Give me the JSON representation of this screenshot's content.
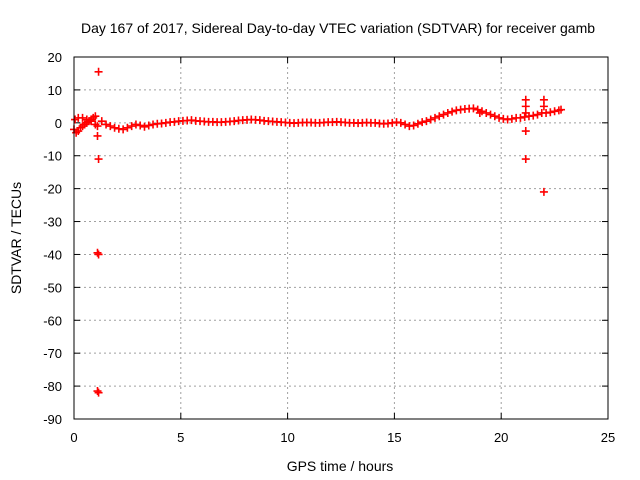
{
  "chart_data": {
    "type": "scatter",
    "title": "Day 167 of 2017, Sidereal Day-to-day VTEC variation (SDTVAR) for receiver gamb",
    "xlabel": "GPS time / hours",
    "ylabel": "SDTVAR / TECUs",
    "xlim": [
      0,
      25
    ],
    "ylim": [
      -90,
      20
    ],
    "xticks": [
      0,
      5,
      10,
      15,
      20,
      25
    ],
    "yticks": [
      20,
      10,
      0,
      -10,
      -20,
      -30,
      -40,
      -50,
      -60,
      -70,
      -80,
      -90
    ],
    "xtick_labels": [
      "0",
      "5",
      "10",
      "15",
      "20",
      "25"
    ],
    "ytick_labels": [
      "20",
      "10",
      "0",
      "-10",
      "-20",
      "-30",
      "-40",
      "-50",
      "-60",
      "-70",
      "-80",
      "-90"
    ],
    "grid": true,
    "marker": "+",
    "color": "#ff0000",
    "series": [
      {
        "name": "SDTVAR",
        "points": [
          [
            0.0,
            -2.0
          ],
          [
            0.1,
            -3.0
          ],
          [
            0.2,
            -2.5
          ],
          [
            0.3,
            -1.5
          ],
          [
            0.4,
            -1.0
          ],
          [
            0.5,
            -0.5
          ],
          [
            0.6,
            0.0
          ],
          [
            0.7,
            0.5
          ],
          [
            0.8,
            1.0
          ],
          [
            0.9,
            1.5
          ],
          [
            1.0,
            2.0
          ],
          [
            0.05,
            1.0
          ],
          [
            0.2,
            1.5
          ],
          [
            0.4,
            1.5
          ],
          [
            0.6,
            1.0
          ],
          [
            0.8,
            0.5
          ],
          [
            1.0,
            -0.5
          ],
          [
            1.1,
            -1.0
          ],
          [
            1.15,
            15.5
          ],
          [
            1.1,
            -4.0
          ],
          [
            1.15,
            -11.0
          ],
          [
            1.1,
            -39.5
          ],
          [
            1.15,
            -40.0
          ],
          [
            1.1,
            -81.5
          ],
          [
            1.15,
            -82.0
          ],
          [
            1.3,
            0.5
          ],
          [
            1.5,
            -0.5
          ],
          [
            1.7,
            -1.0
          ],
          [
            1.9,
            -1.5
          ],
          [
            2.1,
            -1.8
          ],
          [
            2.3,
            -2.0
          ],
          [
            2.5,
            -1.5
          ],
          [
            2.7,
            -1.0
          ],
          [
            2.9,
            -0.5
          ],
          [
            3.1,
            -0.8
          ],
          [
            3.3,
            -1.2
          ],
          [
            3.5,
            -0.8
          ],
          [
            3.7,
            -0.5
          ],
          [
            3.9,
            -0.3
          ],
          [
            4.1,
            -0.2
          ],
          [
            4.3,
            0.0
          ],
          [
            4.5,
            0.2
          ],
          [
            4.7,
            0.3
          ],
          [
            4.9,
            0.5
          ],
          [
            5.1,
            0.6
          ],
          [
            5.3,
            0.7
          ],
          [
            5.5,
            0.8
          ],
          [
            5.7,
            0.6
          ],
          [
            5.9,
            0.5
          ],
          [
            6.1,
            0.4
          ],
          [
            6.3,
            0.3
          ],
          [
            6.5,
            0.3
          ],
          [
            6.7,
            0.2
          ],
          [
            6.9,
            0.2
          ],
          [
            7.1,
            0.3
          ],
          [
            7.3,
            0.4
          ],
          [
            7.5,
            0.5
          ],
          [
            7.7,
            0.7
          ],
          [
            7.9,
            0.8
          ],
          [
            8.1,
            0.9
          ],
          [
            8.3,
            1.0
          ],
          [
            8.5,
            0.9
          ],
          [
            8.7,
            0.8
          ],
          [
            8.9,
            0.6
          ],
          [
            9.1,
            0.5
          ],
          [
            9.3,
            0.4
          ],
          [
            9.5,
            0.3
          ],
          [
            9.7,
            0.2
          ],
          [
            9.9,
            0.1
          ],
          [
            10.1,
            0.0
          ],
          [
            10.3,
            -0.1
          ],
          [
            10.5,
            0.0
          ],
          [
            10.7,
            0.1
          ],
          [
            10.9,
            0.1
          ],
          [
            11.1,
            0.1
          ],
          [
            11.3,
            0.0
          ],
          [
            11.5,
            0.0
          ],
          [
            11.7,
            0.1
          ],
          [
            11.9,
            0.2
          ],
          [
            12.1,
            0.2
          ],
          [
            12.3,
            0.3
          ],
          [
            12.5,
            0.2
          ],
          [
            12.7,
            0.1
          ],
          [
            12.9,
            0.0
          ],
          [
            13.1,
            0.0
          ],
          [
            13.3,
            -0.1
          ],
          [
            13.5,
            0.0
          ],
          [
            13.7,
            0.1
          ],
          [
            13.9,
            0.0
          ],
          [
            14.1,
            0.0
          ],
          [
            14.3,
            -0.2
          ],
          [
            14.5,
            -0.3
          ],
          [
            14.7,
            -0.2
          ],
          [
            14.9,
            0.0
          ],
          [
            15.1,
            0.2
          ],
          [
            15.3,
            0.0
          ],
          [
            15.5,
            -0.5
          ],
          [
            15.7,
            -1.0
          ],
          [
            15.9,
            -0.8
          ],
          [
            16.1,
            -0.3
          ],
          [
            16.3,
            0.2
          ],
          [
            16.5,
            0.5
          ],
          [
            16.7,
            1.0
          ],
          [
            16.9,
            1.5
          ],
          [
            17.1,
            2.0
          ],
          [
            17.3,
            2.5
          ],
          [
            17.5,
            3.0
          ],
          [
            17.7,
            3.4
          ],
          [
            17.9,
            3.8
          ],
          [
            18.1,
            4.0
          ],
          [
            18.3,
            4.2
          ],
          [
            18.5,
            4.3
          ],
          [
            18.7,
            4.4
          ],
          [
            18.9,
            4.0
          ],
          [
            19.0,
            3.0
          ],
          [
            19.1,
            3.5
          ],
          [
            19.3,
            3.0
          ],
          [
            19.5,
            2.5
          ],
          [
            19.7,
            2.0
          ],
          [
            19.9,
            1.5
          ],
          [
            20.1,
            1.2
          ],
          [
            20.3,
            1.0
          ],
          [
            20.5,
            1.2
          ],
          [
            20.7,
            1.5
          ],
          [
            20.9,
            1.5
          ],
          [
            21.1,
            1.8
          ],
          [
            21.15,
            7.0
          ],
          [
            21.15,
            5.0
          ],
          [
            21.15,
            3.0
          ],
          [
            21.15,
            -2.5
          ],
          [
            21.15,
            -11.0
          ],
          [
            21.3,
            2.0
          ],
          [
            21.5,
            2.2
          ],
          [
            21.7,
            2.5
          ],
          [
            21.9,
            3.0
          ],
          [
            22.0,
            7.0
          ],
          [
            22.0,
            5.0
          ],
          [
            22.0,
            -21.0
          ],
          [
            22.1,
            3.0
          ],
          [
            22.3,
            3.2
          ],
          [
            22.5,
            3.5
          ],
          [
            22.7,
            3.8
          ],
          [
            22.8,
            4.0
          ]
        ]
      }
    ]
  }
}
